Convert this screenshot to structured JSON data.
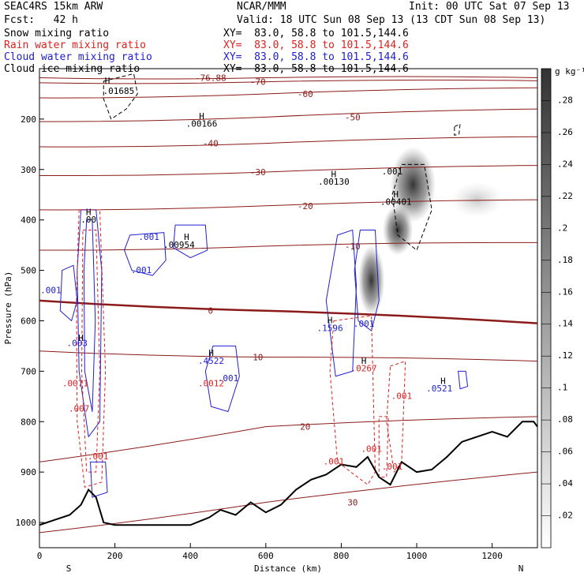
{
  "header": {
    "model": "SEAC4RS 15km ARW",
    "org": "NCAR/MMM",
    "init": "Init: 00 UTC Sat 07 Sep 13",
    "fcst": "Fcst:   42 h",
    "valid": "Valid: 18 UTC Sun 08 Sep 13 (13 CDT Sun 08 Sep 13)",
    "fields": [
      {
        "name": "Snow mixing ratio",
        "xy": "XY=  83.0, 58.8 to 101.5,144.6",
        "color": "#000000"
      },
      {
        "name": "Rain water mixing ratio",
        "xy": "XY=  83.0, 58.8 to 101.5,144.6",
        "color": "#e02020"
      },
      {
        "name": "Cloud water mixing ratio",
        "xy": "XY=  83.0, 58.8 to 101.5,144.6",
        "color": "#2020d0"
      },
      {
        "name": "Cloud ice mixing ratio",
        "xy": "XY=  83.0, 58.8 to 101.5,144.6",
        "color": "#000000"
      }
    ]
  },
  "chart_data": {
    "type": "contour",
    "xlabel": "Distance (km)",
    "ylabel": "Pressure (hPa)",
    "x_ticks": [
      0,
      200,
      400,
      600,
      800,
      1000,
      1200
    ],
    "xlim": [
      0,
      1320
    ],
    "y_ticks": [
      200,
      300,
      400,
      500,
      600,
      700,
      800,
      900,
      1000
    ],
    "ylim": [
      100,
      1050
    ],
    "x_end_labels": {
      "left": "S",
      "right": "N"
    },
    "colorbar": {
      "unit": "g kg⁻¹",
      "ticks": [
        ".02",
        ".04",
        ".06",
        ".08",
        ".1",
        ".12",
        ".14",
        ".16",
        ".18",
        ".2",
        ".22",
        ".24",
        ".26",
        ".28"
      ],
      "range": [
        0,
        0.3
      ],
      "color_low": "#ffffff",
      "color_high": "#333333"
    },
    "temperature_contours": [
      {
        "label": "-76.88",
        "p": [
          118,
          118,
          118
        ],
        "x": [
          0,
          600,
          1320
        ]
      },
      {
        "label": "-70",
        "p": [
          128,
          126,
          124
        ],
        "x": [
          0,
          600,
          1320
        ]
      },
      {
        "label": "-60",
        "p": [
          158,
          150,
          138
        ],
        "x": [
          0,
          600,
          1320
        ]
      },
      {
        "label": "-50",
        "p": [
          205,
          196,
          180
        ],
        "x": [
          0,
          600,
          1320
        ]
      },
      {
        "label": "-40",
        "p": [
          255,
          248,
          235
        ],
        "x": [
          0,
          600,
          1320
        ]
      },
      {
        "label": "-30",
        "p": [
          312,
          305,
          292
        ],
        "x": [
          0,
          600,
          1320
        ]
      },
      {
        "label": "-20",
        "p": [
          380,
          372,
          360
        ],
        "x": [
          0,
          600,
          1320
        ]
      },
      {
        "label": "-10",
        "p": [
          460,
          452,
          445
        ],
        "x": [
          0,
          600,
          1320
        ]
      },
      {
        "label": "0",
        "p": [
          560,
          580,
          605
        ],
        "x": [
          0,
          600,
          1320
        ],
        "bold": true
      },
      {
        "label": "10",
        "p": [
          660,
          672,
          680
        ],
        "x": [
          0,
          600,
          1320
        ]
      },
      {
        "label": "20",
        "p": [
          880,
          810,
          790
        ],
        "x": [
          0,
          600,
          1320
        ]
      },
      {
        "label": "30",
        "p": [
          1020,
          960,
          900
        ],
        "x": [
          0,
          600,
          1320
        ]
      }
    ],
    "terrain_profile": {
      "x": [
        0,
        40,
        80,
        110,
        130,
        150,
        170,
        200,
        300,
        400,
        450,
        480,
        520,
        560,
        600,
        640,
        680,
        720,
        760,
        800,
        840,
        870,
        900,
        930,
        960,
        1000,
        1040,
        1080,
        1120,
        1160,
        1200,
        1240,
        1280,
        1310,
        1320
      ],
      "p": [
        1005,
        995,
        985,
        965,
        935,
        950,
        1000,
        1005,
        1005,
        1005,
        990,
        975,
        985,
        960,
        980,
        965,
        935,
        915,
        905,
        885,
        890,
        870,
        910,
        925,
        880,
        900,
        895,
        870,
        840,
        830,
        820,
        830,
        800,
        800,
        810
      ]
    },
    "annotations": [
      {
        "text": ".01685",
        "x": 210,
        "p": 150,
        "color": "#000000"
      },
      {
        "text": ".00166",
        "x": 430,
        "p": 215,
        "color": "#000000"
      },
      {
        "text": ".00130",
        "x": 780,
        "p": 330,
        "color": "#000000"
      },
      {
        "text": ".001",
        "x": 935,
        "p": 310,
        "color": "#000000"
      },
      {
        "text": ".00401",
        "x": 945,
        "p": 370,
        "color": "#000000"
      },
      {
        "text": ".001",
        "x": 290,
        "p": 440,
        "color": "#2020d0"
      },
      {
        "text": ".00954",
        "x": 370,
        "p": 455,
        "color": "#000000"
      },
      {
        "text": ".001",
        "x": 270,
        "p": 505,
        "color": "#2020d0"
      },
      {
        "text": ".001",
        "x": 30,
        "p": 545,
        "color": "#2020d0"
      },
      {
        "text": ".1596",
        "x": 770,
        "p": 620,
        "color": "#2020d0"
      },
      {
        "text": ".001",
        "x": 860,
        "p": 612,
        "color": "#2020d0"
      },
      {
        "text": ".0267",
        "x": 860,
        "p": 700,
        "color": "#e02020"
      },
      {
        "text": ".4522",
        "x": 455,
        "p": 685,
        "color": "#2020d0"
      },
      {
        "text": ".0012",
        "x": 455,
        "p": 730,
        "color": "#e02020"
      },
      {
        "text": ".001",
        "x": 500,
        "p": 720,
        "color": "#2020d0"
      },
      {
        "text": ".001",
        "x": 960,
        "p": 755,
        "color": "#e02020"
      },
      {
        "text": ".0521",
        "x": 1060,
        "p": 740,
        "color": "#2020d0"
      },
      {
        "text": ".001",
        "x": 780,
        "p": 885,
        "color": "#e02020"
      },
      {
        "text": ".001",
        "x": 880,
        "p": 860,
        "color": "#e02020"
      },
      {
        "text": ".001",
        "x": 935,
        "p": 895,
        "color": "#e02020"
      },
      {
        "text": ".001",
        "x": 155,
        "p": 875,
        "color": "#e02020"
      },
      {
        "text": ".00",
        "x": 130,
        "p": 405,
        "color": "#000000"
      },
      {
        "text": ".003",
        "x": 100,
        "p": 650,
        "color": "#2020d0"
      },
      {
        "text": ".0071",
        "x": 95,
        "p": 730,
        "color": "#e02020"
      },
      {
        "text": ".007",
        "x": 105,
        "p": 780,
        "color": "#e02020"
      }
    ],
    "h_markers": [
      {
        "x": 180,
        "p": 130
      },
      {
        "x": 430,
        "p": 200
      },
      {
        "x": 780,
        "p": 315
      },
      {
        "x": 945,
        "p": 355
      },
      {
        "x": 390,
        "p": 440
      },
      {
        "x": 770,
        "p": 605
      },
      {
        "x": 860,
        "p": 685
      },
      {
        "x": 455,
        "p": 670
      },
      {
        "x": 130,
        "p": 390
      },
      {
        "x": 1070,
        "p": 725
      },
      {
        "x": 110,
        "p": 640
      }
    ]
  }
}
